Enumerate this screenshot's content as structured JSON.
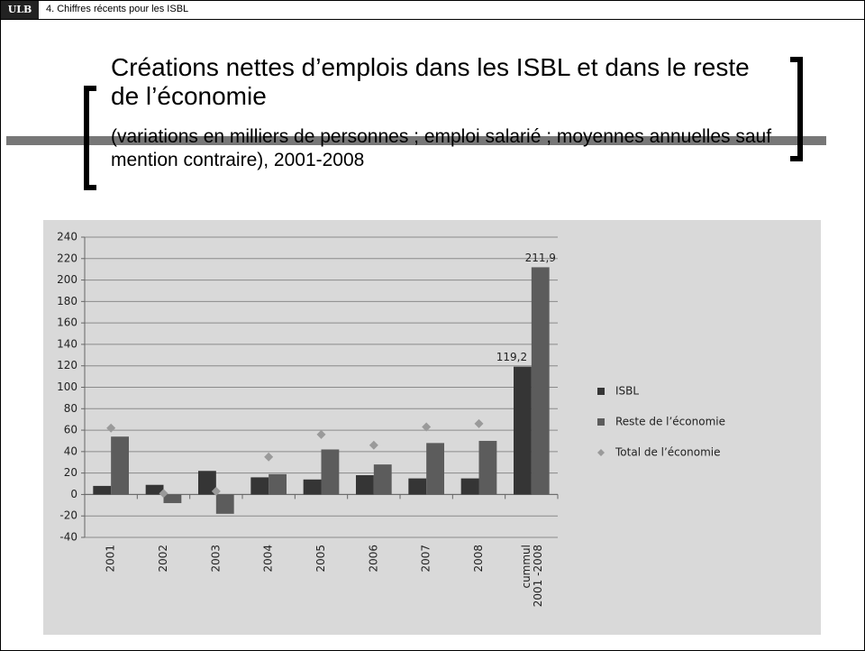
{
  "header": {
    "logo": "ULB",
    "section": "4. Chiffres récents pour les ISBL"
  },
  "chart_data": {
    "type": "bar",
    "title": "Créations nettes d’emplois dans les ISBL et dans le reste de l’économie",
    "subtitle": "(variations en milliers de personnes ; emploi salarié ; moyennes annuelles sauf mention contraire), 2001-2008",
    "categories": [
      "2001",
      "2002",
      "2003",
      "2004",
      "2005",
      "2006",
      "2007",
      "2008",
      "cummul\n2001 -2008"
    ],
    "series": [
      {
        "name": "ISBL",
        "color": "#353535",
        "values": [
          8,
          9,
          22,
          16,
          14,
          18,
          15,
          15,
          119.2
        ],
        "value_labels": [
          null,
          null,
          null,
          null,
          null,
          null,
          null,
          null,
          "119,2"
        ]
      },
      {
        "name": "Reste de l’économie",
        "color": "#5c5c5c",
        "values": [
          54,
          -8,
          -18,
          19,
          42,
          28,
          48,
          50,
          211.9
        ],
        "value_labels": [
          null,
          null,
          null,
          null,
          null,
          null,
          null,
          null,
          "211,9"
        ]
      },
      {
        "name": "Total de l’économie",
        "color": "#9a9a9a",
        "marker": "diamond",
        "values": [
          62,
          1,
          3,
          35,
          56,
          46,
          63,
          66,
          null
        ]
      }
    ],
    "ylim": [
      -40,
      240
    ],
    "yticks": [
      -40,
      -20,
      0,
      20,
      40,
      60,
      80,
      100,
      120,
      140,
      160,
      180,
      200,
      220,
      240
    ],
    "grid": true,
    "legend": "right"
  }
}
